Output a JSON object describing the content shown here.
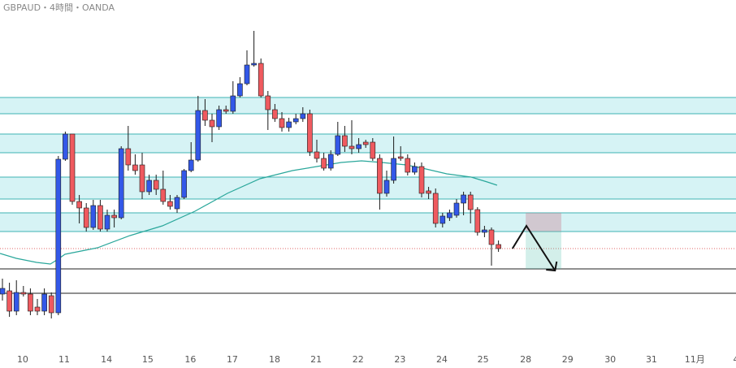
{
  "chart_data": {
    "type": "candlestick",
    "title": "GBPAUD・4時間・OANDA",
    "up_color": "#3358e8",
    "down_color": "#ef5a5f",
    "wick_color": "#1a1a1a",
    "open": [
      1.9028,
      1.9032,
      1.9007,
      1.903,
      1.9028,
      1.9012,
      1.9007,
      1.9026,
      1.9005,
      1.9194,
      1.9225,
      1.9142,
      1.9134,
      1.911,
      1.9137,
      1.9108,
      1.9125,
      1.9122,
      1.9207,
      1.9187,
      1.9187,
      1.9154,
      1.9168,
      1.9157,
      1.9142,
      1.9133,
      1.9147,
      1.918,
      1.9193,
      1.9254,
      1.9242,
      1.9234,
      1.9255,
      1.9253,
      1.9272,
      1.9287,
      1.931,
      1.9312,
      1.9272,
      1.9255,
      1.9244,
      1.9233,
      1.924,
      1.9244,
      1.925,
      1.9203,
      1.9195,
      1.9183,
      1.92,
      1.9223,
      1.921,
      1.9207,
      1.9215,
      1.9215,
      1.9195,
      1.9152,
      1.9168,
      1.9197,
      1.9195,
      1.9178,
      1.9185,
      1.9155,
      1.9152,
      1.9115,
      1.9122,
      1.9125,
      1.914,
      1.915,
      1.9132,
      1.9104,
      1.9107,
      1.9089
    ],
    "high": [
      1.9047,
      1.9042,
      1.9045,
      1.9038,
      1.9035,
      1.9022,
      1.9035,
      1.903,
      1.9198,
      1.9228,
      1.9225,
      1.915,
      1.914,
      1.9144,
      1.9144,
      1.9132,
      1.9132,
      1.921,
      1.9235,
      1.92,
      1.9202,
      1.9175,
      1.9175,
      1.918,
      1.915,
      1.915,
      1.9182,
      1.9215,
      1.9272,
      1.9268,
      1.925,
      1.926,
      1.926,
      1.929,
      1.9295,
      1.9328,
      1.9352,
      1.9318,
      1.9278,
      1.9262,
      1.9252,
      1.9245,
      1.925,
      1.9258,
      1.9255,
      1.9218,
      1.9202,
      1.9205,
      1.924,
      1.9235,
      1.9242,
      1.922,
      1.9218,
      1.922,
      1.92,
      1.918,
      1.9222,
      1.921,
      1.92,
      1.919,
      1.919,
      1.916,
      1.9158,
      1.9128,
      1.9132,
      1.9145,
      1.9154,
      1.9154,
      1.9135,
      1.9112,
      1.911,
      1.9094
    ],
    "low": [
      1.902,
      1.9,
      1.9002,
      1.9025,
      1.9002,
      1.9002,
      1.9002,
      1.8998,
      1.9002,
      1.9192,
      1.9138,
      1.9115,
      1.9105,
      1.9107,
      1.9105,
      1.9105,
      1.911,
      1.912,
      1.918,
      1.9175,
      1.9145,
      1.915,
      1.915,
      1.9138,
      1.9132,
      1.9128,
      1.9145,
      1.9178,
      1.9191,
      1.9235,
      1.9215,
      1.923,
      1.925,
      1.925,
      1.927,
      1.9285,
      1.9308,
      1.927,
      1.923,
      1.924,
      1.9228,
      1.9228,
      1.9237,
      1.924,
      1.9198,
      1.919,
      1.918,
      1.918,
      1.9198,
      1.9203,
      1.92,
      1.9202,
      1.9208,
      1.9192,
      1.9132,
      1.9148,
      1.9164,
      1.9192,
      1.9174,
      1.9175,
      1.9147,
      1.9145,
      1.911,
      1.911,
      1.9118,
      1.9122,
      1.9125,
      1.9115,
      1.91,
      1.9098,
      1.9063,
      1.908
    ],
    "close": [
      1.9035,
      1.9007,
      1.903,
      1.9028,
      1.9007,
      1.9007,
      1.9028,
      1.9005,
      1.9194,
      1.9225,
      1.9142,
      1.9134,
      1.911,
      1.9137,
      1.9108,
      1.9125,
      1.9122,
      1.9207,
      1.9187,
      1.918,
      1.9154,
      1.9168,
      1.9157,
      1.9142,
      1.9136,
      1.9147,
      1.918,
      1.9193,
      1.9254,
      1.9242,
      1.9234,
      1.9255,
      1.9253,
      1.9272,
      1.9287,
      1.931,
      1.9312,
      1.9272,
      1.9255,
      1.9244,
      1.9233,
      1.924,
      1.9244,
      1.925,
      1.9203,
      1.9195,
      1.9183,
      1.92,
      1.9223,
      1.921,
      1.9207,
      1.9212,
      1.9212,
      1.9195,
      1.9152,
      1.9168,
      1.9195,
      1.9195,
      1.9178,
      1.9185,
      1.9152,
      1.9152,
      1.9115,
      1.9124,
      1.9128,
      1.914,
      1.915,
      1.9132,
      1.9104,
      1.9107,
      1.9089,
      1.9084
    ],
    "ma": {
      "color": "#2aa79b",
      "x": [
        -0.35,
        1.98,
        4.88,
        6.86,
        7.79,
        8.95,
        13.6,
        18.26,
        22.9,
        27.56,
        32.2,
        36.86,
        41.51,
        45,
        48.49,
        51.4,
        54.3,
        57.79,
        60.12,
        63.6,
        67.1,
        69.4,
        70.8
      ],
      "values": [
        1.9078,
        1.9072,
        1.9067,
        1.9065,
        1.907,
        1.9077,
        1.9085,
        1.91,
        1.9112,
        1.913,
        1.9152,
        1.917,
        1.918,
        1.9185,
        1.919,
        1.9192,
        1.919,
        1.9187,
        1.9183,
        1.9176,
        1.9172,
        1.9166,
        1.9162
      ]
    },
    "zones": [
      [
        1.927,
        1.925
      ],
      [
        1.9225,
        1.9202
      ],
      [
        1.9172,
        1.9145
      ],
      [
        1.9128,
        1.9105
      ]
    ],
    "zone_color": "#d6f3f5",
    "zone_line_color": "#3fb3b3",
    "price_line": 1.9084,
    "price_line_color": "#e06666",
    "levels": [
      1.9059,
      1.9029
    ],
    "level_color": "#222222",
    "projection": {
      "x0": 74.9,
      "x1": 80.0,
      "stop": 1.9128,
      "entry": 1.9105,
      "target": 1.9059,
      "path_x": [
        73.0,
        75.0,
        79.1
      ],
      "path_values": [
        1.9084,
        1.9112,
        1.9057
      ]
    },
    "xlim": [
      -0.35,
      105
    ],
    "ylim": [
      1.8937,
      1.939
    ],
    "xticks": [
      {
        "value": 2.9,
        "label": "10"
      },
      {
        "value": 8.84,
        "label": "11"
      },
      {
        "value": 14.9,
        "label": "14"
      },
      {
        "value": 20.8,
        "label": "15"
      },
      {
        "value": 26.9,
        "label": "16"
      },
      {
        "value": 32.9,
        "label": "17"
      },
      {
        "value": 38.95,
        "label": "18"
      },
      {
        "value": 44.9,
        "label": "21"
      },
      {
        "value": 50.9,
        "label": "22"
      },
      {
        "value": 56.9,
        "label": "23"
      },
      {
        "value": 62.9,
        "label": "24"
      },
      {
        "value": 68.8,
        "label": "25"
      },
      {
        "value": 74.9,
        "label": "28"
      },
      {
        "value": 80.9,
        "label": "29"
      },
      {
        "value": 87.0,
        "label": "30"
      },
      {
        "value": 92.9,
        "label": "31"
      },
      {
        "value": 99.1,
        "label": "11月"
      },
      {
        "value": 105,
        "label": "4"
      }
    ]
  }
}
